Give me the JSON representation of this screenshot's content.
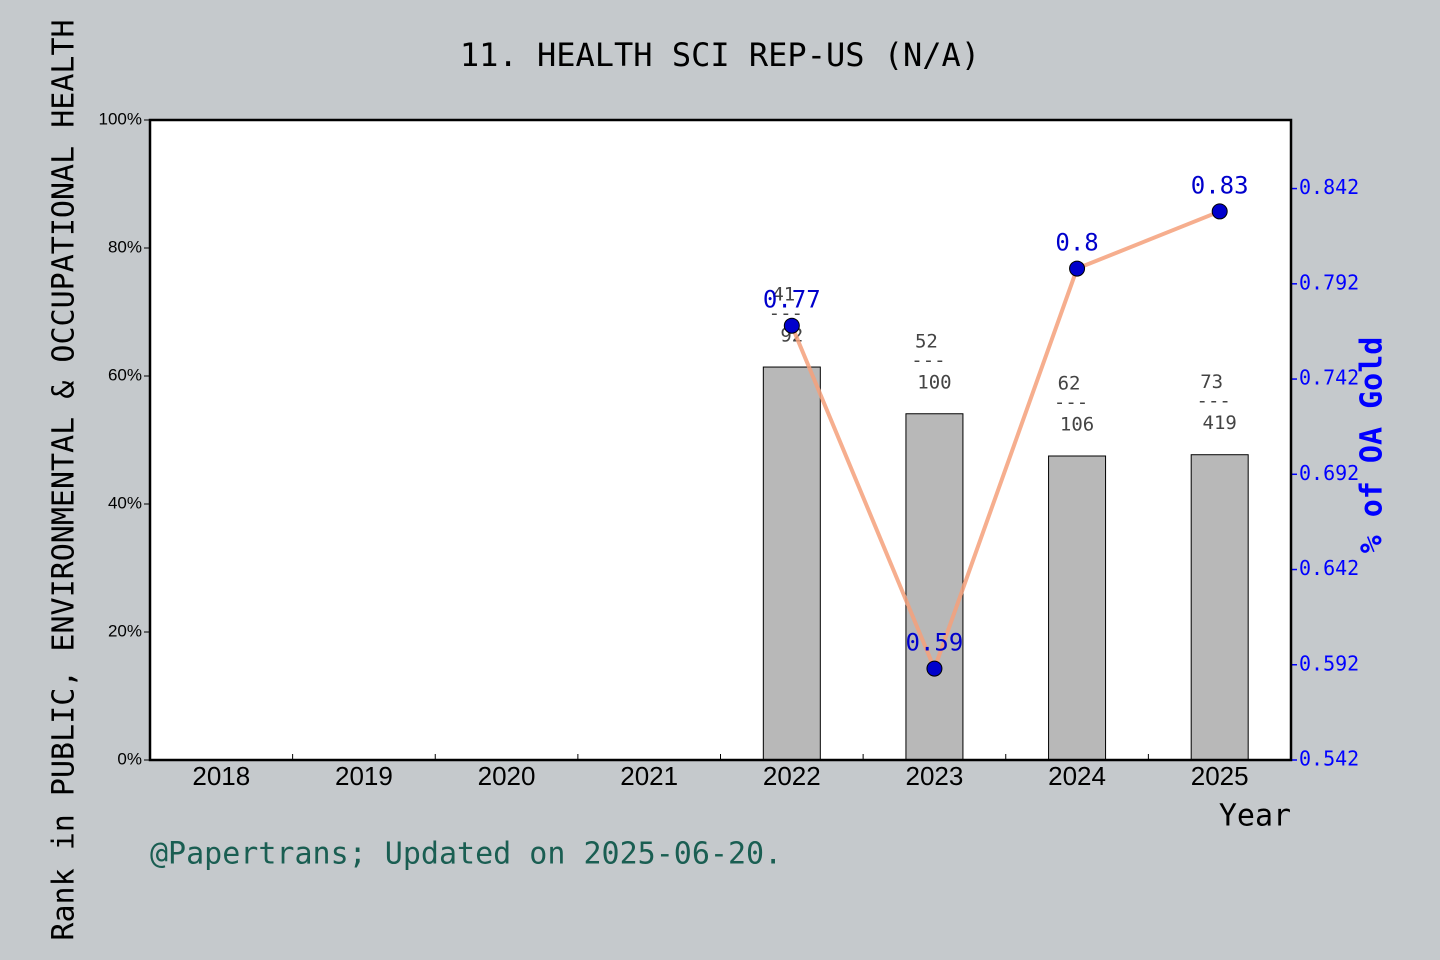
{
  "chart_data": {
    "type": "bar-line",
    "title": "11. HEALTH SCI REP-US (N/A)",
    "y_label": "Rank in PUBLIC, ENVIRONMENTAL & OCCUPATIONAL HEALTH",
    "y2_label": "% of OA Gold",
    "x_label": "Year",
    "footer": "@Papertrans; Updated on 2025-06-20.",
    "categories": [
      "2018",
      "2019",
      "2020",
      "2021",
      "2022",
      "2023",
      "2024",
      "2025"
    ],
    "bars": {
      "color": "#b8b8b8",
      "values": [
        null,
        null,
        null,
        null,
        61.4,
        54.1,
        47.5,
        47.7
      ]
    },
    "rank_labels": [
      null,
      null,
      null,
      null,
      "41",
      "52",
      "62",
      "73"
    ],
    "separator": "---",
    "total_labels": [
      null,
      null,
      null,
      null,
      "92",
      "100",
      "106",
      "419"
    ],
    "line": {
      "color": "#f4a07a",
      "marker_color": "#0000cc",
      "axis": "y2",
      "values": [
        null,
        null,
        null,
        null,
        0.77,
        0.59,
        0.8,
        0.83
      ]
    },
    "ylim": [
      0,
      100
    ],
    "yticks": [
      {
        "value": 0,
        "label": "0%"
      },
      {
        "value": 20,
        "label": "20%"
      },
      {
        "value": 40,
        "label": "40%"
      },
      {
        "value": 60,
        "label": "60%"
      },
      {
        "value": 80,
        "label": "80%"
      },
      {
        "value": 100,
        "label": "100%"
      }
    ],
    "y2lim": [
      0.542,
      0.878
    ],
    "y2ticks": [
      0.542,
      0.592,
      0.642,
      0.692,
      0.742,
      0.792,
      0.842
    ],
    "y2_color": "#0000ff"
  }
}
